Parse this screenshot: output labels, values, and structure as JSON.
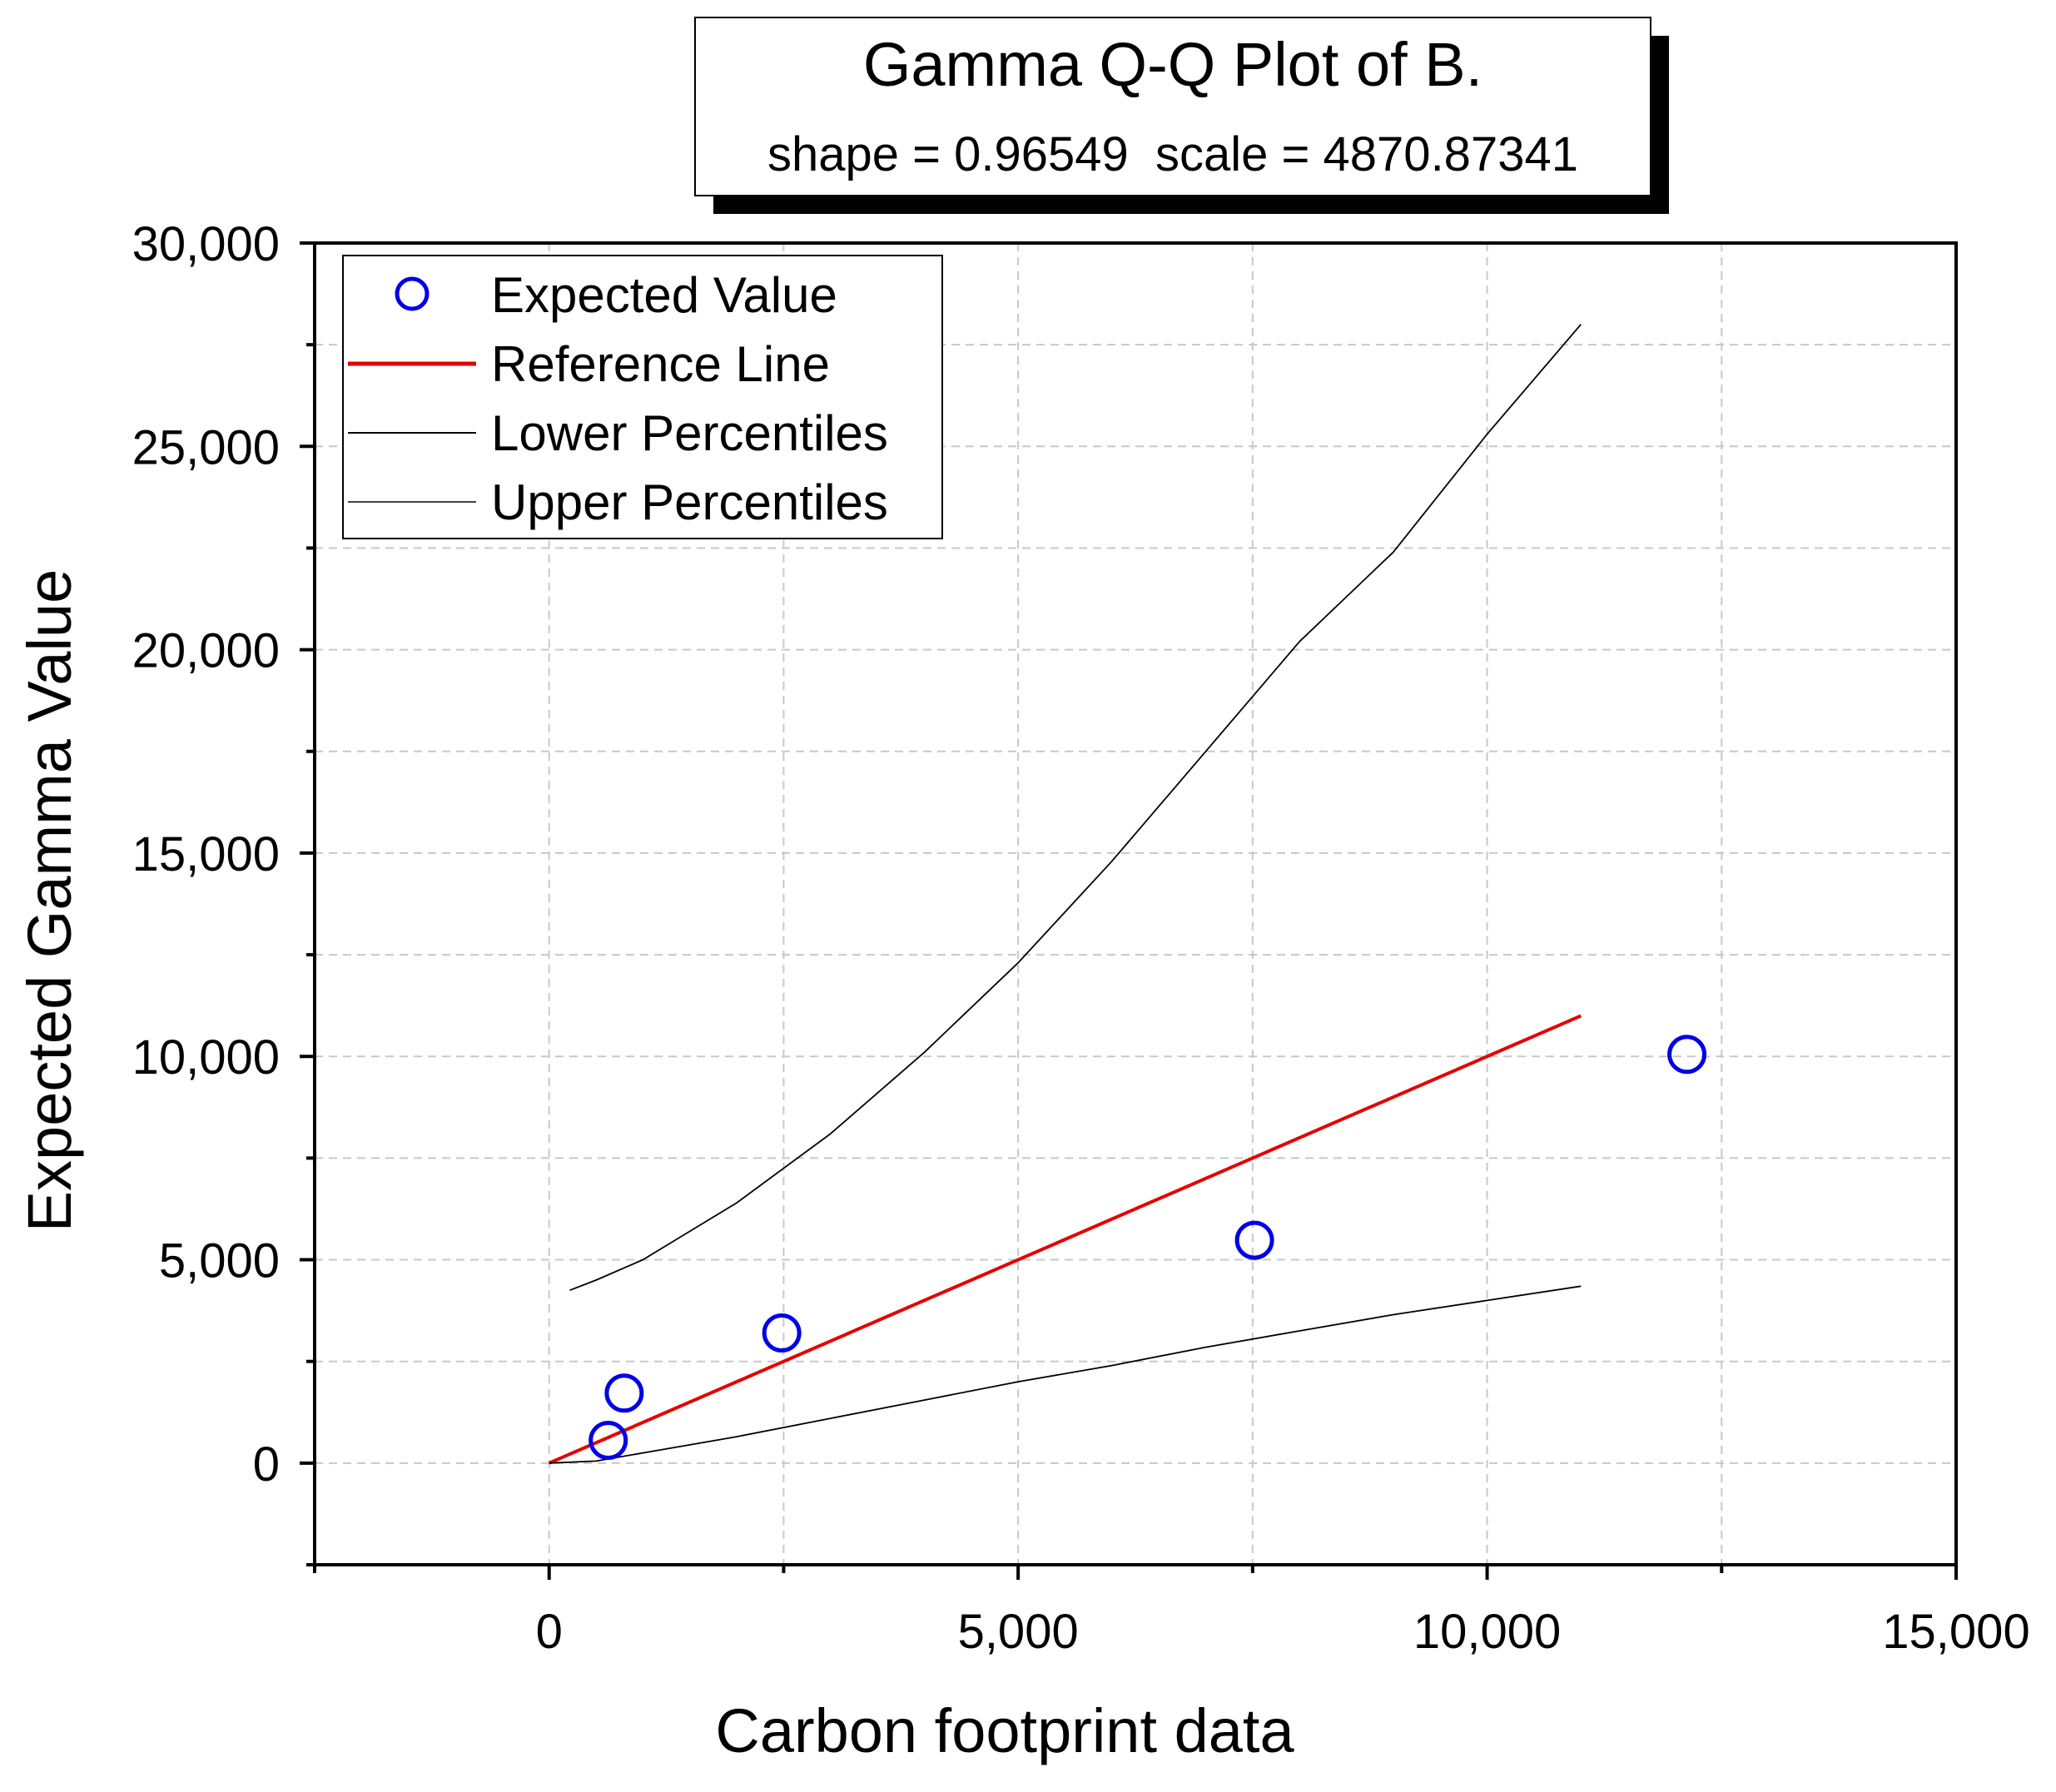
{
  "chart_data": {
    "type": "scatter",
    "title": "Gamma Q-Q Plot of B.",
    "subtitle": "shape = 0.96549  scale = 4870.87341",
    "xlabel": "Carbon footprint data",
    "ylabel": "Expected Gamma Value",
    "xlim": [
      -2500,
      15000
    ],
    "ylim": [
      -2500,
      30000
    ],
    "x_ticks": [
      0,
      5000,
      10000,
      15000
    ],
    "x_tick_labels": [
      "0",
      "5,000",
      "10,000",
      "15,000"
    ],
    "y_ticks": [
      0,
      5000,
      10000,
      15000,
      20000,
      25000,
      30000
    ],
    "y_tick_labels": [
      "0",
      "5,000",
      "10,000",
      "15,000",
      "20,000",
      "25,000",
      "30,000"
    ],
    "grid": true,
    "legend_position": "top-left",
    "legend": [
      "Expected Value",
      "Reference Line",
      "Lower Percentiles",
      "Upper Percentiles"
    ],
    "colors": {
      "points": "#0000e6",
      "reference": "#e60000",
      "percentiles": "#000000",
      "grid": "#c8c8c8"
    },
    "series": [
      {
        "name": "Expected Value",
        "kind": "points",
        "x": [
          630,
          800,
          2480,
          7520,
          12130
        ],
        "y": [
          560,
          1720,
          3200,
          5480,
          10050
        ]
      },
      {
        "name": "Reference Line",
        "kind": "line",
        "x": [
          0,
          11000
        ],
        "y": [
          0,
          11000
        ]
      },
      {
        "name": "Lower Percentiles",
        "kind": "line",
        "x": [
          0,
          500,
          1000,
          2000,
          3000,
          4000,
          5000,
          6000,
          7000,
          8000,
          9000,
          10000,
          11000
        ],
        "y": [
          0,
          50,
          250,
          650,
          1100,
          1550,
          2000,
          2400,
          2850,
          3250,
          3650,
          4000,
          4350
        ]
      },
      {
        "name": "Upper Percentiles",
        "kind": "line",
        "x": [
          220,
          500,
          1000,
          2000,
          3000,
          4000,
          5000,
          6000,
          7000,
          8000,
          9000,
          10000,
          11000
        ],
        "y": [
          4250,
          4500,
          5000,
          6400,
          8100,
          10100,
          12300,
          14800,
          17500,
          20200,
          22400,
          25300,
          28000
        ]
      }
    ]
  }
}
